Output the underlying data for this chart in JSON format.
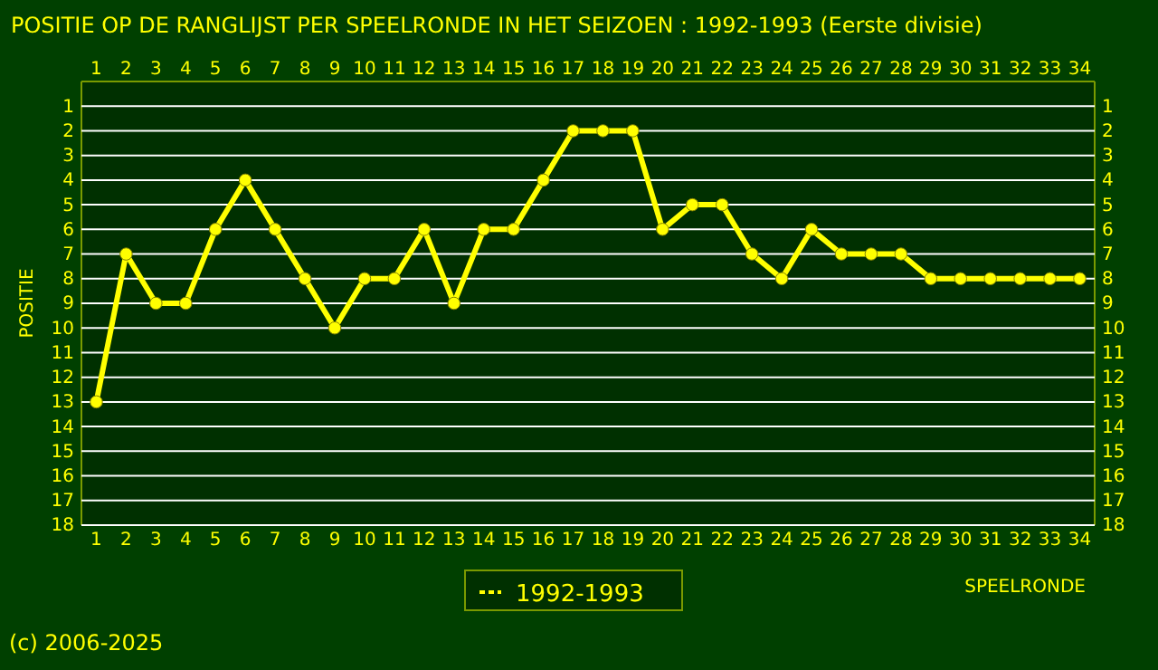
{
  "chart_data": {
    "type": "line",
    "title": "POSITIE OP DE RANGLIJST PER  SPEELRONDE IN HET SEIZOEN : 1992-1993 (Eerste divisie)",
    "xlabel": "SPEELRONDE",
    "ylabel": "POSITIE",
    "annotations": [
      "(c) 2006-2025"
    ],
    "x": [
      1,
      2,
      3,
      4,
      5,
      6,
      7,
      8,
      9,
      10,
      11,
      12,
      13,
      14,
      15,
      16,
      17,
      18,
      19,
      20,
      21,
      22,
      23,
      24,
      25,
      26,
      27,
      28,
      29,
      30,
      31,
      32,
      33,
      34
    ],
    "series": [
      {
        "name": "1992-1993",
        "color": "#ffff00",
        "values": [
          13,
          7,
          9,
          9,
          6,
          4,
          6,
          8,
          10,
          8,
          8,
          6,
          9,
          6,
          6,
          4,
          2,
          2,
          2,
          6,
          5,
          5,
          7,
          8,
          6,
          7,
          7,
          7,
          8,
          8,
          8,
          8,
          8,
          8
        ]
      }
    ],
    "xlim": [
      0.5,
      34.5
    ],
    "xticks": [
      1,
      2,
      3,
      4,
      5,
      6,
      7,
      8,
      9,
      10,
      11,
      12,
      13,
      14,
      15,
      16,
      17,
      18,
      19,
      20,
      21,
      22,
      23,
      24,
      25,
      26,
      27,
      28,
      29,
      30,
      31,
      32,
      33,
      34
    ],
    "x2lim": [
      0.5,
      34.5
    ],
    "x2ticks": [
      1,
      2,
      3,
      4,
      5,
      6,
      7,
      8,
      9,
      10,
      11,
      12,
      13,
      14,
      15,
      16,
      17,
      18,
      19,
      20,
      21,
      22,
      23,
      24,
      25,
      26,
      27,
      28,
      29,
      30,
      31,
      32,
      33,
      34
    ],
    "ylim": [
      18,
      0
    ],
    "yticks": [
      1,
      2,
      3,
      4,
      5,
      6,
      7,
      8,
      9,
      10,
      11,
      12,
      13,
      14,
      15,
      16,
      17,
      18
    ],
    "y2lim": [
      18,
      0
    ],
    "y2ticks": [
      1,
      2,
      3,
      4,
      5,
      6,
      7,
      8,
      9,
      10,
      11,
      12,
      13,
      14,
      15,
      16,
      17,
      18
    ],
    "grid": "y",
    "legend": "bottom",
    "marker": "circle",
    "line_style": "solid"
  }
}
